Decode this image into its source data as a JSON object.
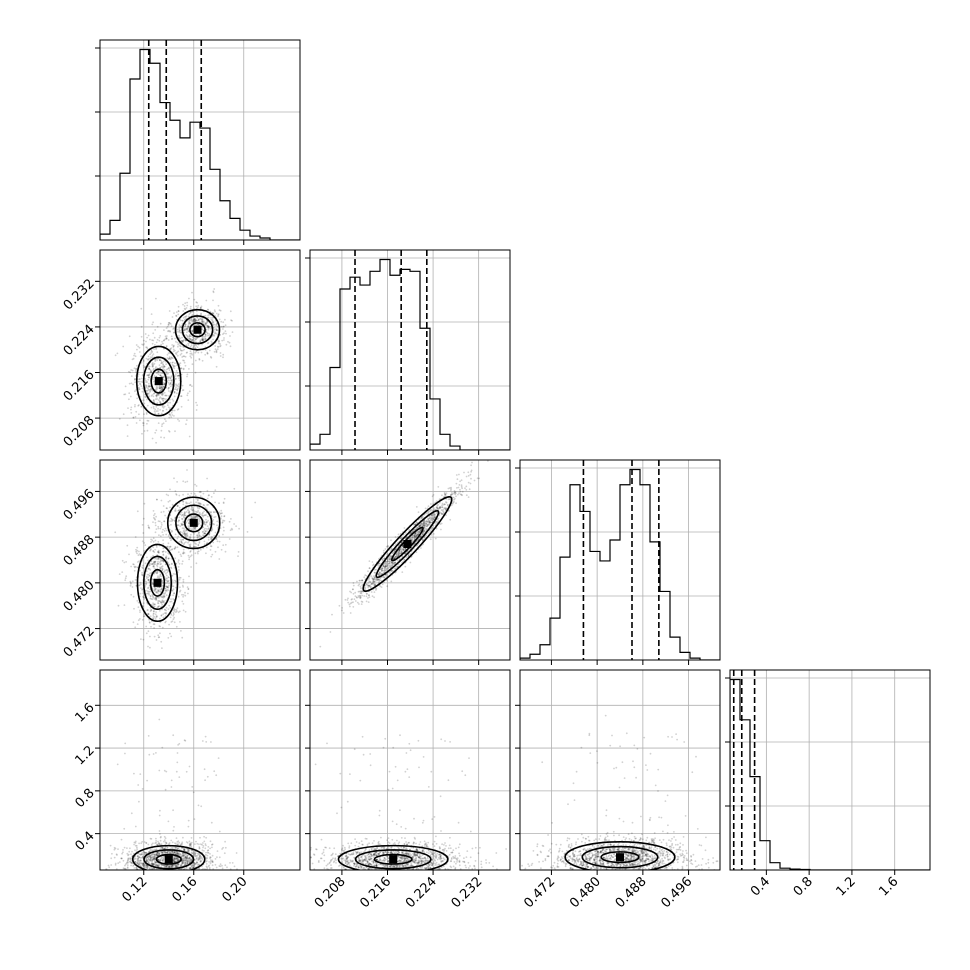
{
  "chart_data": {
    "type": "corner",
    "title": "",
    "parameters": [
      "",
      "",
      "",
      ""
    ],
    "ranges": [
      [
        0.085,
        0.245
      ],
      [
        0.2024,
        0.2375
      ],
      [
        0.4665,
        0.5015
      ],
      [
        0.06,
        1.93
      ]
    ],
    "ticks": [
      {
        "values": [
          0.12,
          0.16,
          0.2
        ],
        "labels": [
          "0.12",
          "0.16",
          "0.20"
        ]
      },
      {
        "values": [
          0.208,
          0.216,
          0.224,
          0.232
        ],
        "labels": [
          "0.208",
          "0.216",
          "0.224",
          "0.232"
        ]
      },
      {
        "values": [
          0.472,
          0.48,
          0.488,
          0.496
        ],
        "labels": [
          "0.472",
          "0.480",
          "0.488",
          "0.496"
        ]
      },
      {
        "values": [
          0.4,
          0.8,
          1.2,
          1.6
        ],
        "labels": [
          "0.4",
          "0.8",
          "1.2",
          "1.6"
        ]
      }
    ],
    "grid": true,
    "histograms": [
      {
        "edges_start": 0.085,
        "edges_end": 0.245,
        "counts": [
          3,
          10,
          34,
          82,
          97,
          90,
          70,
          61,
          52,
          60,
          57,
          36,
          20,
          11,
          5,
          2,
          1,
          0,
          0,
          0
        ],
        "quantiles": [
          0.124,
          0.138,
          0.166
        ]
      },
      {
        "edges_start": 0.2024,
        "edges_end": 0.2375,
        "counts": [
          3,
          8,
          42,
          82,
          88,
          84,
          91,
          97,
          89,
          92,
          91,
          62,
          26,
          8,
          2,
          0,
          0,
          0,
          0,
          0
        ],
        "quantiles": [
          0.2103,
          0.2184,
          0.2229
        ]
      },
      {
        "edges_start": 0.4665,
        "edges_end": 0.5015,
        "counts": [
          1,
          3,
          8,
          22,
          54,
          92,
          78,
          57,
          52,
          63,
          92,
          100,
          92,
          62,
          36,
          12,
          4,
          1,
          0,
          0
        ],
        "quantiles": [
          0.4776,
          0.4861,
          0.4908
        ]
      },
      {
        "edges_start": 0.06,
        "edges_end": 1.93,
        "counts": [
          104,
          82,
          51,
          16,
          4,
          1,
          0.5,
          0.3,
          0,
          0,
          0,
          0,
          0,
          0,
          0,
          0,
          0,
          0,
          0,
          0
        ],
        "quantiles": [
          0.095,
          0.17,
          0.29
        ]
      }
    ],
    "joint_peaks": [
      {
        "row": 1,
        "col": 0,
        "modes": [
          {
            "x": 0.132,
            "y": 0.2145,
            "sx": 0.011,
            "sy": 0.0038,
            "w": 1.0
          },
          {
            "x": 0.163,
            "y": 0.2235,
            "sx": 0.011,
            "sy": 0.0022,
            "w": 0.8
          }
        ]
      },
      {
        "row": 2,
        "col": 0,
        "modes": [
          {
            "x": 0.131,
            "y": 0.48,
            "sx": 0.01,
            "sy": 0.0042,
            "w": 1.0
          },
          {
            "x": 0.16,
            "y": 0.4905,
            "sx": 0.013,
            "sy": 0.0028,
            "w": 0.9
          }
        ]
      },
      {
        "row": 2,
        "col": 1,
        "modes": [
          {
            "x": 0.2195,
            "y": 0.4868,
            "sx": 0.0045,
            "sy": 0.0048,
            "w": 1.0,
            "corr": 0.96
          }
        ]
      },
      {
        "row": 3,
        "col": 0,
        "modes": [
          {
            "x": 0.14,
            "y": 0.16,
            "sx": 0.018,
            "sy": 0.08,
            "w": 1.0
          }
        ]
      },
      {
        "row": 3,
        "col": 1,
        "modes": [
          {
            "x": 0.217,
            "y": 0.16,
            "sx": 0.006,
            "sy": 0.08,
            "w": 1.0
          }
        ]
      },
      {
        "row": 3,
        "col": 2,
        "modes": [
          {
            "x": 0.484,
            "y": 0.18,
            "sx": 0.006,
            "sy": 0.09,
            "w": 1.0
          }
        ]
      }
    ]
  }
}
